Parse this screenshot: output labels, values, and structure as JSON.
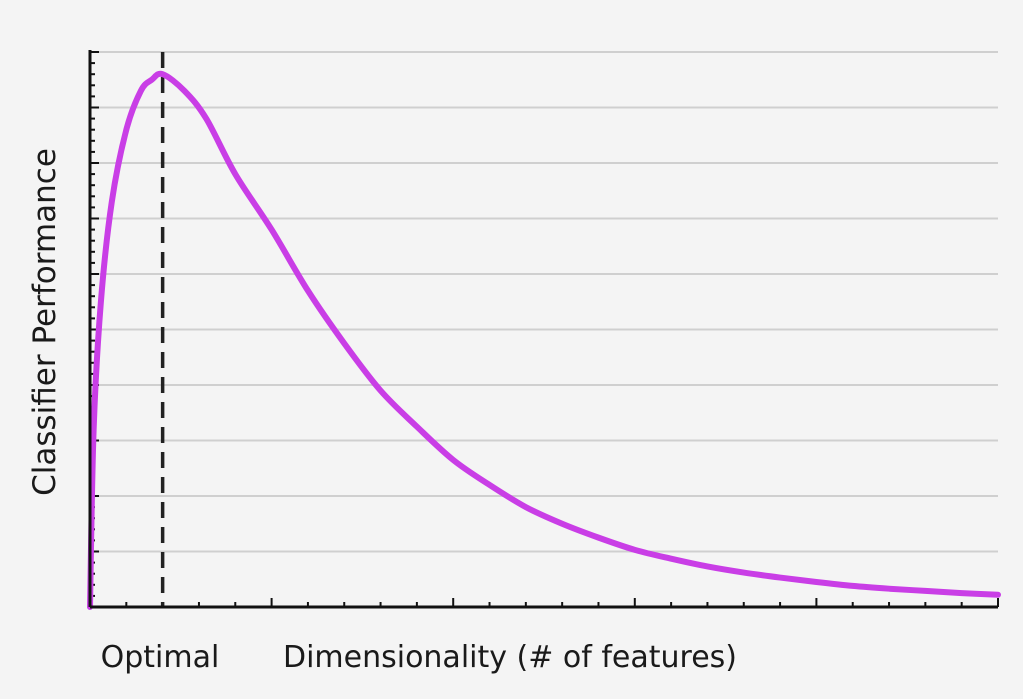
{
  "chart_data": {
    "type": "line",
    "title": "",
    "xlabel": "Dimensionality (# of features)",
    "ylabel": "Classifier Performance",
    "optimal_label": "Optimal",
    "optimal_x": 1,
    "xlim": [
      0,
      12.5
    ],
    "ylim": [
      0,
      10
    ],
    "grid": true,
    "series": [
      {
        "color": "#c93ee6",
        "x": [
          0,
          0.05,
          0.15,
          0.3,
          0.5,
          0.7,
          0.85,
          1.0,
          1.3,
          1.6,
          2.0,
          2.5,
          3.0,
          3.5,
          4.0,
          4.5,
          5.0,
          5.5,
          6.0,
          6.5,
          7.0,
          7.5,
          8.0,
          8.5,
          9.0,
          9.5,
          10.0,
          10.5,
          11.0,
          11.5,
          12.0,
          12.5
        ],
        "y": [
          0,
          3.2,
          5.5,
          7.3,
          8.6,
          9.3,
          9.5,
          9.6,
          9.3,
          8.8,
          7.8,
          6.8,
          5.7,
          4.75,
          3.9,
          3.25,
          2.65,
          2.2,
          1.8,
          1.5,
          1.25,
          1.03,
          0.87,
          0.73,
          0.62,
          0.53,
          0.45,
          0.38,
          0.33,
          0.29,
          0.25,
          0.22
        ]
      }
    ],
    "colors": {
      "axis": "#111111",
      "grid": "#cfcfcf",
      "optimal_line": "#222222"
    }
  }
}
